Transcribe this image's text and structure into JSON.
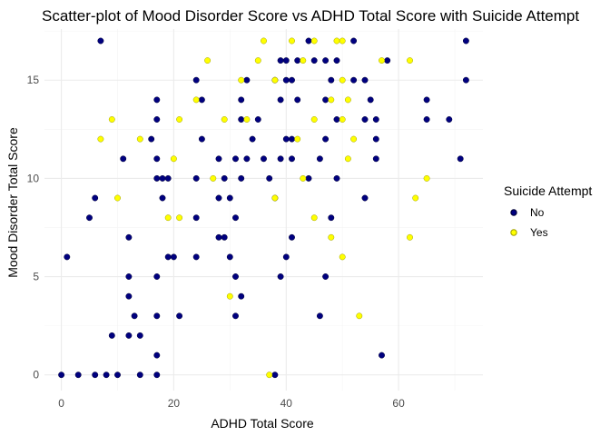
{
  "colors": {
    "no": "#00007F",
    "yes": "#FFFF00",
    "no_stroke": "#000033",
    "yes_stroke": "#9e9e00"
  },
  "chart_data": {
    "type": "scatter",
    "title": "Scatter-plot of Mood Disorder Score vs ADHD Total Score with Suicide Attempt",
    "xlabel": "ADHD Total Score",
    "ylabel": "Mood Disorder Total Score",
    "xlim": [
      -3,
      75
    ],
    "ylim": [
      -0.8,
      17.6
    ],
    "xticks": [
      0,
      20,
      40,
      60
    ],
    "yticks": [
      0,
      5,
      10,
      15
    ],
    "grid": true,
    "legend": {
      "title": "Suicide Attempt",
      "placement": "right",
      "entries": [
        "No",
        "Yes"
      ]
    },
    "series": [
      {
        "name": "No",
        "points": [
          [
            0,
            0
          ],
          [
            3,
            0
          ],
          [
            6,
            0
          ],
          [
            8,
            0
          ],
          [
            10,
            0
          ],
          [
            14,
            0
          ],
          [
            17,
            0
          ],
          [
            38,
            0
          ],
          [
            17,
            1
          ],
          [
            57,
            1
          ],
          [
            9,
            2
          ],
          [
            12,
            2
          ],
          [
            14,
            2
          ],
          [
            13,
            3
          ],
          [
            17,
            3
          ],
          [
            21,
            3
          ],
          [
            31,
            3
          ],
          [
            46,
            3
          ],
          [
            12,
            4
          ],
          [
            32,
            4
          ],
          [
            12,
            5
          ],
          [
            17,
            5
          ],
          [
            31,
            5
          ],
          [
            39,
            5
          ],
          [
            47,
            5
          ],
          [
            1,
            6
          ],
          [
            19,
            6
          ],
          [
            20,
            6
          ],
          [
            24,
            6
          ],
          [
            30,
            6
          ],
          [
            40,
            6
          ],
          [
            12,
            7
          ],
          [
            28,
            7
          ],
          [
            29,
            7
          ],
          [
            41,
            7
          ],
          [
            5,
            8
          ],
          [
            24,
            8
          ],
          [
            31,
            8
          ],
          [
            48,
            8
          ],
          [
            6,
            9
          ],
          [
            18,
            9
          ],
          [
            28,
            9
          ],
          [
            30,
            9
          ],
          [
            38,
            9
          ],
          [
            54,
            9
          ],
          [
            17,
            10
          ],
          [
            18,
            10
          ],
          [
            19,
            10
          ],
          [
            24,
            10
          ],
          [
            29,
            10
          ],
          [
            32,
            10
          ],
          [
            37,
            10
          ],
          [
            44,
            10
          ],
          [
            49,
            10
          ],
          [
            11,
            11
          ],
          [
            17,
            11
          ],
          [
            28,
            11
          ],
          [
            31,
            11
          ],
          [
            33,
            11
          ],
          [
            36,
            11
          ],
          [
            39,
            11
          ],
          [
            41,
            11
          ],
          [
            46,
            11
          ],
          [
            56,
            11
          ],
          [
            71,
            11
          ],
          [
            16,
            12
          ],
          [
            25,
            12
          ],
          [
            34,
            12
          ],
          [
            40,
            12
          ],
          [
            41,
            12
          ],
          [
            47,
            12
          ],
          [
            56,
            12
          ],
          [
            17,
            13
          ],
          [
            32,
            13
          ],
          [
            35,
            13
          ],
          [
            49,
            13
          ],
          [
            54,
            13
          ],
          [
            56,
            13
          ],
          [
            65,
            13
          ],
          [
            69,
            13
          ],
          [
            17,
            14
          ],
          [
            25,
            14
          ],
          [
            32,
            14
          ],
          [
            39,
            14
          ],
          [
            42,
            14
          ],
          [
            47,
            14
          ],
          [
            55,
            14
          ],
          [
            65,
            14
          ],
          [
            24,
            15
          ],
          [
            33,
            15
          ],
          [
            38,
            15
          ],
          [
            40,
            15
          ],
          [
            41,
            15
          ],
          [
            48,
            15
          ],
          [
            52,
            15
          ],
          [
            54,
            15
          ],
          [
            72,
            15
          ],
          [
            39,
            16
          ],
          [
            40,
            16
          ],
          [
            42,
            16
          ],
          [
            45,
            16
          ],
          [
            47,
            16
          ],
          [
            49,
            16
          ],
          [
            58,
            16
          ],
          [
            7,
            17
          ],
          [
            44,
            17
          ],
          [
            52,
            17
          ],
          [
            72,
            17
          ]
        ]
      },
      {
        "name": "Yes",
        "points": [
          [
            37,
            0
          ],
          [
            53,
            3
          ],
          [
            30,
            4
          ],
          [
            50,
            6
          ],
          [
            48,
            7
          ],
          [
            62,
            7
          ],
          [
            19,
            8
          ],
          [
            21,
            8
          ],
          [
            45,
            8
          ],
          [
            10,
            9
          ],
          [
            38,
            9
          ],
          [
            63,
            9
          ],
          [
            27,
            10
          ],
          [
            43,
            10
          ],
          [
            65,
            10
          ],
          [
            20,
            11
          ],
          [
            51,
            11
          ],
          [
            7,
            12
          ],
          [
            14,
            12
          ],
          [
            42,
            12
          ],
          [
            52,
            12
          ],
          [
            9,
            13
          ],
          [
            21,
            13
          ],
          [
            29,
            13
          ],
          [
            33,
            13
          ],
          [
            45,
            13
          ],
          [
            50,
            13
          ],
          [
            24,
            14
          ],
          [
            48,
            14
          ],
          [
            51,
            14
          ],
          [
            32,
            15
          ],
          [
            38,
            15
          ],
          [
            50,
            15
          ],
          [
            26,
            16
          ],
          [
            35,
            16
          ],
          [
            43,
            16
          ],
          [
            57,
            16
          ],
          [
            62,
            16
          ],
          [
            36,
            17
          ],
          [
            41,
            17
          ],
          [
            45,
            17
          ],
          [
            49,
            17
          ],
          [
            50,
            17
          ]
        ]
      }
    ]
  }
}
